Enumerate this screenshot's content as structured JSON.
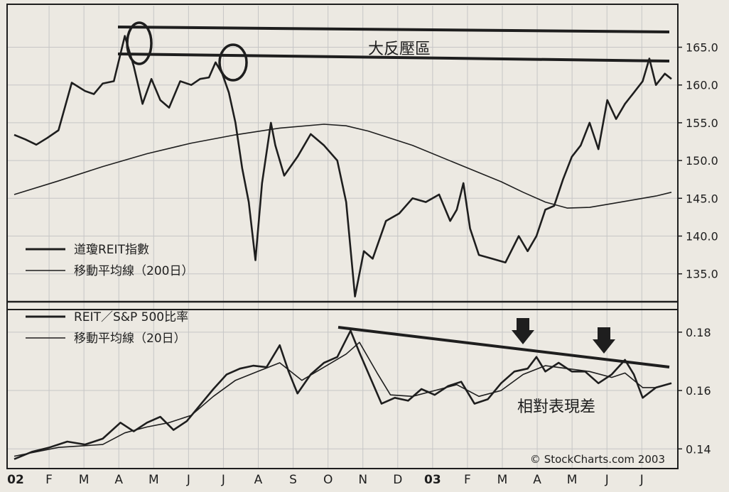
{
  "chart_data": [
    {
      "type": "line",
      "legend": [
        {
          "label": "道瓊REIT指數"
        },
        {
          "label": "移動平均線（200日）"
        }
      ],
      "y_ticks": [
        "165.0",
        "160.0",
        "155.0",
        "150.0",
        "145.0",
        "140.0",
        "135.0"
      ],
      "ylim": [
        131.4,
        170.5
      ],
      "series": [
        {
          "name": "道瓊REIT指數",
          "values": [
            [
              0,
              153.4
            ],
            [
              0.25,
              152.8
            ],
            [
              0.5,
              152.1
            ],
            [
              0.75,
              153.0
            ],
            [
              1.0,
              154.0
            ],
            [
              1.3,
              160.3
            ],
            [
              1.6,
              159.2
            ],
            [
              1.8,
              158.8
            ],
            [
              2.0,
              160.2
            ],
            [
              2.25,
              160.5
            ],
            [
              2.5,
              166.5
            ],
            [
              2.7,
              162.5
            ],
            [
              2.9,
              157.5
            ],
            [
              3.1,
              160.8
            ],
            [
              3.3,
              158.0
            ],
            [
              3.5,
              157.0
            ],
            [
              3.75,
              160.5
            ],
            [
              4.0,
              160.0
            ],
            [
              4.2,
              160.8
            ],
            [
              4.4,
              161.0
            ],
            [
              4.55,
              163.0
            ],
            [
              4.7,
              161.5
            ],
            [
              4.85,
              159.0
            ],
            [
              5.0,
              155.0
            ],
            [
              5.15,
              149.0
            ],
            [
              5.3,
              144.5
            ],
            [
              5.45,
              136.8
            ],
            [
              5.6,
              147.0
            ],
            [
              5.8,
              155.0
            ],
            [
              5.9,
              152.0
            ],
            [
              6.1,
              148.0
            ],
            [
              6.4,
              150.5
            ],
            [
              6.7,
              153.5
            ],
            [
              7.0,
              152.0
            ],
            [
              7.3,
              150.0
            ],
            [
              7.5,
              144.5
            ],
            [
              7.7,
              132.0
            ],
            [
              7.9,
              138.0
            ],
            [
              8.1,
              137.0
            ],
            [
              8.4,
              142.0
            ],
            [
              8.7,
              143.0
            ],
            [
              9.0,
              145.0
            ],
            [
              9.3,
              144.5
            ],
            [
              9.6,
              145.5
            ],
            [
              9.85,
              142.0
            ],
            [
              10.0,
              143.5
            ],
            [
              10.15,
              147.0
            ],
            [
              10.3,
              141.0
            ],
            [
              10.5,
              137.5
            ],
            [
              10.8,
              137.0
            ],
            [
              11.1,
              136.5
            ],
            [
              11.4,
              140.0
            ],
            [
              11.6,
              138.0
            ],
            [
              11.8,
              140.0
            ],
            [
              12.0,
              143.5
            ],
            [
              12.2,
              144.0
            ],
            [
              12.4,
              147.5
            ],
            [
              12.6,
              150.5
            ],
            [
              12.8,
              152.0
            ],
            [
              13.0,
              155.0
            ],
            [
              13.2,
              151.5
            ],
            [
              13.4,
              158.0
            ],
            [
              13.6,
              155.5
            ],
            [
              13.8,
              157.5
            ],
            [
              14.0,
              159.0
            ],
            [
              14.2,
              160.5
            ],
            [
              14.35,
              163.5
            ],
            [
              14.5,
              160.0
            ],
            [
              14.7,
              161.5
            ],
            [
              14.85,
              160.8
            ]
          ]
        },
        {
          "name": "移動平均線（200日）",
          "values": [
            [
              0,
              145.5
            ],
            [
              1.0,
              147.3
            ],
            [
              2.0,
              149.2
            ],
            [
              3.0,
              150.9
            ],
            [
              4.0,
              152.3
            ],
            [
              5.0,
              153.4
            ],
            [
              6.0,
              154.3
            ],
            [
              7.0,
              154.8
            ],
            [
              7.5,
              154.6
            ],
            [
              8.0,
              153.9
            ],
            [
              9.0,
              152.0
            ],
            [
              10.0,
              149.6
            ],
            [
              11.0,
              147.2
            ],
            [
              11.5,
              145.8
            ],
            [
              12.0,
              144.5
            ],
            [
              12.5,
              143.7
            ],
            [
              13.0,
              143.8
            ],
            [
              13.5,
              144.3
            ],
            [
              14.0,
              144.8
            ],
            [
              14.5,
              145.3
            ],
            [
              14.85,
              145.8
            ]
          ]
        }
      ],
      "annotations": [
        "大反壓區"
      ]
    },
    {
      "type": "line",
      "legend": [
        {
          "label": "REIT／S&P 500比率"
        },
        {
          "label": "移動平均線（20日）"
        }
      ],
      "y_ticks": [
        "0.18",
        "0.16",
        "0.14"
      ],
      "ylim": [
        0.1335,
        0.1875
      ],
      "series": [
        {
          "name": "REIT／S&P 500比率",
          "values": [
            [
              0,
              0.1365
            ],
            [
              0.4,
              0.139
            ],
            [
              0.8,
              0.1405
            ],
            [
              1.2,
              0.1425
            ],
            [
              1.6,
              0.1415
            ],
            [
              2.0,
              0.1435
            ],
            [
              2.4,
              0.149
            ],
            [
              2.7,
              0.146
            ],
            [
              3.0,
              0.149
            ],
            [
              3.3,
              0.151
            ],
            [
              3.6,
              0.1465
            ],
            [
              3.9,
              0.1495
            ],
            [
              4.2,
              0.155
            ],
            [
              4.5,
              0.1605
            ],
            [
              4.8,
              0.1655
            ],
            [
              5.1,
              0.1675
            ],
            [
              5.4,
              0.1685
            ],
            [
              5.7,
              0.168
            ],
            [
              6.0,
              0.1755
            ],
            [
              6.2,
              0.1665
            ],
            [
              6.4,
              0.159
            ],
            [
              6.7,
              0.1655
            ],
            [
              7.0,
              0.1695
            ],
            [
              7.3,
              0.1715
            ],
            [
              7.6,
              0.1805
            ],
            [
              7.8,
              0.173
            ],
            [
              8.0,
              0.166
            ],
            [
              8.3,
              0.1555
            ],
            [
              8.6,
              0.1575
            ],
            [
              8.9,
              0.1565
            ],
            [
              9.2,
              0.1605
            ],
            [
              9.5,
              0.1585
            ],
            [
              9.8,
              0.1615
            ],
            [
              10.1,
              0.163
            ],
            [
              10.4,
              0.1555
            ],
            [
              10.7,
              0.157
            ],
            [
              11.0,
              0.1625
            ],
            [
              11.3,
              0.1665
            ],
            [
              11.6,
              0.1675
            ],
            [
              11.8,
              0.1715
            ],
            [
              12.0,
              0.1665
            ],
            [
              12.3,
              0.1695
            ],
            [
              12.6,
              0.1665
            ],
            [
              12.9,
              0.1665
            ],
            [
              13.2,
              0.1625
            ],
            [
              13.5,
              0.1655
            ],
            [
              13.8,
              0.1705
            ],
            [
              14.0,
              0.1655
            ],
            [
              14.2,
              0.1575
            ],
            [
              14.5,
              0.161
            ],
            [
              14.85,
              0.1625
            ]
          ]
        },
        {
          "name": "移動平均線（20日）",
          "values": [
            [
              0,
              0.1375
            ],
            [
              1.0,
              0.1405
            ],
            [
              2.0,
              0.1415
            ],
            [
              2.5,
              0.1455
            ],
            [
              3.0,
              0.1475
            ],
            [
              3.5,
              0.149
            ],
            [
              4.0,
              0.1515
            ],
            [
              4.5,
              0.158
            ],
            [
              5.0,
              0.1635
            ],
            [
              5.5,
              0.1665
            ],
            [
              6.0,
              0.1695
            ],
            [
              6.5,
              0.1635
            ],
            [
              7.0,
              0.168
            ],
            [
              7.5,
              0.1725
            ],
            [
              7.8,
              0.1765
            ],
            [
              8.2,
              0.166
            ],
            [
              8.5,
              0.1585
            ],
            [
              9.0,
              0.158
            ],
            [
              9.5,
              0.16
            ],
            [
              10.0,
              0.162
            ],
            [
              10.5,
              0.158
            ],
            [
              11.0,
              0.16
            ],
            [
              11.5,
              0.1655
            ],
            [
              12.0,
              0.1685
            ],
            [
              12.5,
              0.1675
            ],
            [
              13.0,
              0.1665
            ],
            [
              13.5,
              0.1645
            ],
            [
              13.8,
              0.166
            ],
            [
              14.2,
              0.161
            ],
            [
              14.5,
              0.161
            ],
            [
              14.85,
              0.1625
            ]
          ]
        }
      ],
      "annotations": [
        "相對表現差"
      ]
    }
  ],
  "x_axis": {
    "labels": [
      "02",
      "F",
      "M",
      "A",
      "M",
      "J",
      "J",
      "A",
      "S",
      "O",
      "N",
      "D",
      "03",
      "F",
      "M",
      "A",
      "M",
      "J",
      "J"
    ]
  },
  "credit": "© StockCharts.com 2003",
  "colors": {
    "background": "#ece9e2",
    "line": "#1e1e1e",
    "grid": "#c6c6c6"
  }
}
